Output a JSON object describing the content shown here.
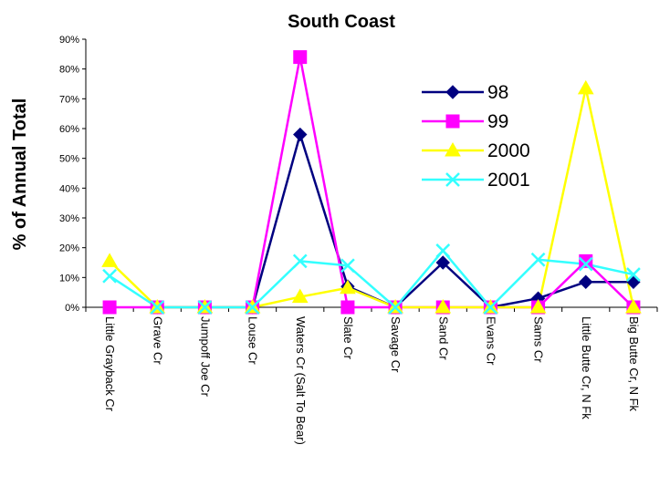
{
  "chart_data": {
    "type": "line",
    "title": "South Coast",
    "ylabel": "% of Annual Total",
    "xlabel": "",
    "ylim": [
      0,
      90
    ],
    "yticks": [
      0,
      10,
      20,
      30,
      40,
      50,
      60,
      70,
      80,
      90
    ],
    "ytick_labels": [
      "0%",
      "10%",
      "20%",
      "30%",
      "40%",
      "50%",
      "60%",
      "70%",
      "80%",
      "90%"
    ],
    "grid": false,
    "legend_position": "top-right",
    "categories": [
      "Little Grayback Cr",
      "Grave Cr",
      "Jumpoff Joe Cr",
      "Louse Cr",
      "Waters Cr (Salt To Bear)",
      "Slate Cr",
      "Savage Cr",
      "Sand Cr",
      "Evans Cr",
      "Sams Cr",
      "Little Butte Cr, N Fk",
      "Big Butte Cr, N Fk"
    ],
    "series": [
      {
        "name": "98",
        "color": "#000080",
        "marker": "diamond",
        "values": [
          null,
          0,
          0,
          0,
          58,
          7,
          0,
          15,
          0,
          3,
          8.5,
          8.5
        ]
      },
      {
        "name": "99",
        "color": "#ff00ff",
        "marker": "square",
        "values": [
          0,
          0,
          0,
          0,
          84,
          0,
          0,
          0,
          0,
          0,
          15.5,
          0
        ]
      },
      {
        "name": "2000",
        "color": "#ffff00",
        "marker": "triangle",
        "values": [
          15.5,
          0,
          0,
          0,
          3.5,
          6.5,
          0,
          0,
          0,
          0,
          73.5,
          0
        ]
      },
      {
        "name": "2001",
        "color": "#33ffff",
        "marker": "x",
        "values": [
          10.5,
          0,
          0,
          0,
          15.5,
          14,
          0,
          19,
          0,
          16,
          14.5,
          11
        ]
      }
    ]
  }
}
